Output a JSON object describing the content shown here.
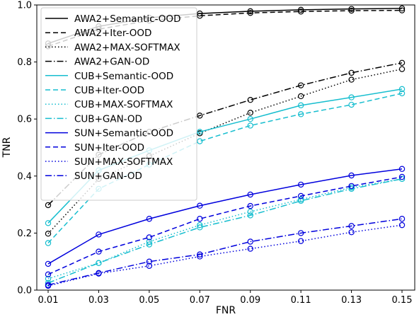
{
  "chart_data": {
    "type": "line",
    "xlabel": "FNR",
    "ylabel": "TNR",
    "x": [
      "0.01",
      "0.03",
      "0.05",
      "0.07",
      "0.09",
      "0.11",
      "0.13",
      "0.15"
    ],
    "ylim": [
      0.0,
      1.0
    ],
    "yticks": [
      "0.0",
      "0.2",
      "0.4",
      "0.6",
      "0.8",
      "1.0"
    ],
    "grid": false,
    "legend_position": "top-left",
    "series": [
      {
        "name": "AWA2+Semantic-OOD",
        "color": "#000000",
        "dash": "solid",
        "values": [
          0.865,
          0.925,
          0.955,
          0.97,
          0.978,
          0.983,
          0.986,
          0.988
        ]
      },
      {
        "name": "AWA2+Iter-OOD",
        "color": "#000000",
        "dash": "dashed",
        "values": [
          0.855,
          0.915,
          0.945,
          0.962,
          0.972,
          0.977,
          0.98,
          0.981
        ]
      },
      {
        "name": "AWA2+MAX-SOFTMAX",
        "color": "#000000",
        "dash": "dotted",
        "values": [
          0.198,
          0.39,
          0.47,
          0.55,
          0.622,
          0.68,
          0.738,
          0.775
        ]
      },
      {
        "name": "AWA2+GAN-OD",
        "color": "#000000",
        "dash": "dashdot",
        "values": [
          0.298,
          0.475,
          0.555,
          0.612,
          0.667,
          0.718,
          0.762,
          0.797
        ]
      },
      {
        "name": "CUB+Semantic-OOD",
        "color": "#17becf",
        "dash": "solid",
        "values": [
          0.235,
          0.42,
          0.49,
          0.555,
          0.6,
          0.648,
          0.676,
          0.705
        ]
      },
      {
        "name": "CUB+Iter-OOD",
        "color": "#17becf",
        "dash": "dashed",
        "values": [
          0.165,
          0.355,
          0.44,
          0.522,
          0.577,
          0.617,
          0.65,
          0.69
        ]
      },
      {
        "name": "CUB+MAX-SOFTMAX",
        "color": "#17becf",
        "dash": "dotted",
        "values": [
          0.04,
          0.095,
          0.17,
          0.228,
          0.275,
          0.318,
          0.36,
          0.39
        ]
      },
      {
        "name": "CUB+GAN-OD",
        "color": "#17becf",
        "dash": "dashdot",
        "values": [
          0.025,
          0.095,
          0.16,
          0.22,
          0.262,
          0.313,
          0.355,
          0.39
        ]
      },
      {
        "name": "SUN+Semantic-OOD",
        "color": "#0000dd",
        "dash": "solid",
        "values": [
          0.092,
          0.195,
          0.25,
          0.296,
          0.335,
          0.37,
          0.402,
          0.425
        ]
      },
      {
        "name": "SUN+Iter-OOD",
        "color": "#0000dd",
        "dash": "dashed",
        "values": [
          0.055,
          0.135,
          0.185,
          0.25,
          0.295,
          0.33,
          0.365,
          0.397
        ]
      },
      {
        "name": "SUN+MAX-SOFTMAX",
        "color": "#0000dd",
        "dash": "dotted",
        "values": [
          0.015,
          0.058,
          0.085,
          0.118,
          0.145,
          0.172,
          0.203,
          0.228
        ]
      },
      {
        "name": "SUN+GAN-OD",
        "color": "#0000dd",
        "dash": "dashdot",
        "values": [
          0.018,
          0.06,
          0.1,
          0.125,
          0.17,
          0.2,
          0.225,
          0.25
        ]
      }
    ]
  }
}
